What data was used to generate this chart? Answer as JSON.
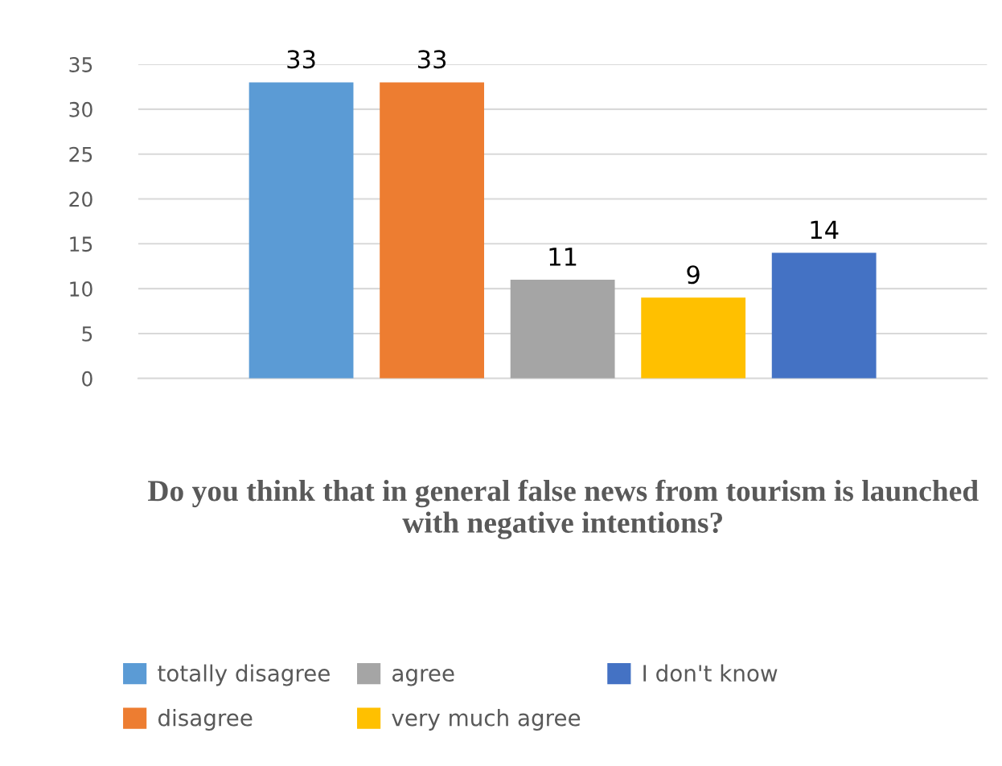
{
  "chart_data": {
    "type": "bar",
    "title": "Do you think that in general false news from tourism is launched with negative intentions?",
    "categories": [
      null
    ],
    "series": [
      {
        "name": "totally disagree",
        "color": "#5b9bd5",
        "values": [
          33
        ]
      },
      {
        "name": "disagree",
        "color": "#ed7d31",
        "values": [
          33
        ]
      },
      {
        "name": "agree",
        "color": "#a5a5a5",
        "values": [
          11
        ]
      },
      {
        "name": "very much agree",
        "color": "#ffc000",
        "values": [
          9
        ]
      },
      {
        "name": "I don't know",
        "color": "#4472c4",
        "values": [
          14
        ]
      }
    ],
    "ylim": [
      0,
      35
    ],
    "yticks": [
      0,
      5,
      10,
      15,
      20,
      25,
      30,
      35
    ],
    "grid": "y",
    "legend": "bottom",
    "data_labels": true
  }
}
